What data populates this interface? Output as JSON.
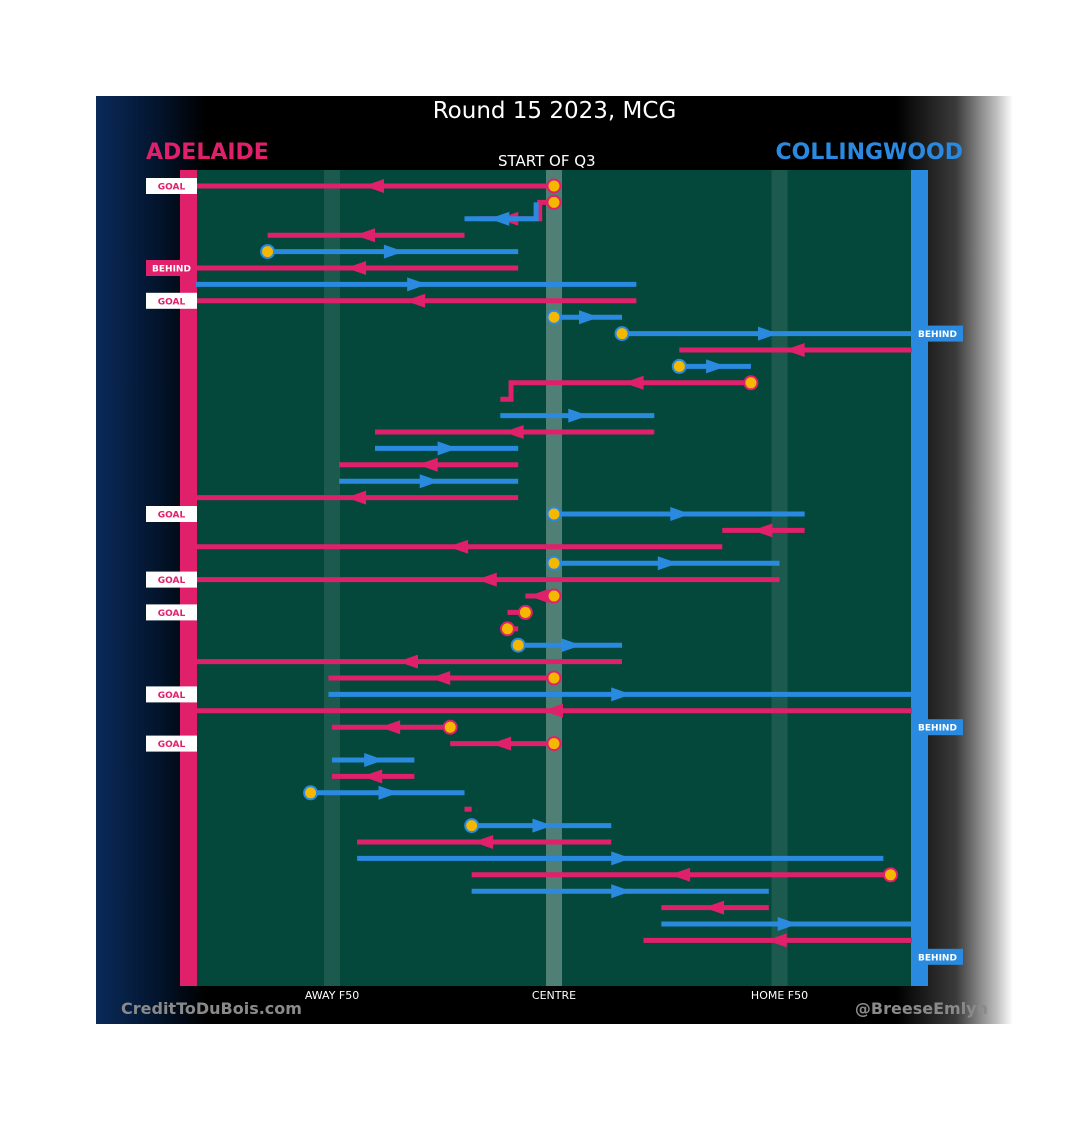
{
  "title": "Round 15 2023, MCG",
  "team_left": "ADELAIDE",
  "team_right": "COLLINGWOOD",
  "period_label": "START OF Q3",
  "credit_left": "CreditToDuBois.com",
  "credit_right": "@BreeseEmlyn",
  "colors": {
    "adelaide": "#e0206a",
    "collingwood": "#2a8ae0",
    "field": "#03483a",
    "stoppage_marker": "#f5b800"
  },
  "chart_data": {
    "type": "line",
    "title": "Round 15 2023, MCG",
    "xlabel": "",
    "ylabel": "",
    "x_ticks": [
      "AWAY F50",
      "CENTRE",
      "HOME F50"
    ],
    "series": [
      {
        "name": "ADELAIDE"
      },
      {
        "name": "COLLINGWOOD"
      }
    ],
    "outcome_labels": [
      "GOAL",
      "BEHIND"
    ],
    "outcomes_left": [
      {
        "row": 0,
        "label": "GOAL"
      },
      {
        "row": 5,
        "label": "BEHIND"
      },
      {
        "row": 7,
        "label": "GOAL"
      },
      {
        "row": 20,
        "label": "GOAL"
      },
      {
        "row": 24,
        "label": "GOAL"
      },
      {
        "row": 26,
        "label": "GOAL"
      },
      {
        "row": 31,
        "label": "GOAL"
      },
      {
        "row": 34,
        "label": "GOAL"
      }
    ],
    "outcomes_right": [
      {
        "row": 9,
        "label": "BEHIND"
      },
      {
        "row": 33,
        "label": "BEHIND"
      },
      {
        "row": 47,
        "label": "BEHIND"
      }
    ],
    "chains": [
      {
        "team": "adelaide",
        "start_marker": true,
        "points": [
          [
            0,
            0,
            0
          ],
          [
            0,
            0,
            -100
          ]
        ]
      },
      {
        "team": "adelaide",
        "start_marker": true,
        "points": [
          [
            1,
            0,
            -4
          ],
          [
            2,
            -4,
            -21
          ]
        ]
      },
      {
        "team": "collingwood",
        "points": [
          [
            1,
            -5,
            -5
          ],
          [
            2,
            -5,
            -25
          ]
        ]
      },
      {
        "team": "adelaide",
        "points": [
          [
            3,
            -25,
            -80
          ]
        ]
      },
      {
        "team": "collingwood",
        "start_marker": true,
        "points": [
          [
            4,
            -80,
            -10
          ]
        ]
      },
      {
        "team": "adelaide",
        "points": [
          [
            5,
            -10,
            -100
          ]
        ]
      },
      {
        "team": "collingwood",
        "points": [
          [
            6,
            -100,
            23
          ]
        ]
      },
      {
        "team": "adelaide",
        "points": [
          [
            7,
            23,
            -100
          ]
        ]
      },
      {
        "team": "collingwood",
        "start_marker": true,
        "points": [
          [
            8,
            0,
            19
          ]
        ]
      },
      {
        "team": "collingwood",
        "start_marker": true,
        "points": [
          [
            9,
            19,
            100
          ]
        ]
      },
      {
        "team": "adelaide",
        "points": [
          [
            10,
            100,
            35
          ]
        ]
      },
      {
        "team": "collingwood",
        "start_marker": true,
        "points": [
          [
            11,
            35,
            55
          ]
        ]
      },
      {
        "team": "adelaide",
        "start_marker": true,
        "points": [
          [
            12,
            55,
            -10
          ]
        ]
      },
      {
        "team": "adelaide",
        "points": [
          [
            12,
            -10,
            -12
          ],
          [
            13,
            -12,
            -15
          ]
        ]
      },
      {
        "team": "collingwood",
        "points": [
          [
            14,
            -15,
            28
          ]
        ]
      },
      {
        "team": "adelaide",
        "points": [
          [
            15,
            28,
            -50
          ]
        ]
      },
      {
        "team": "collingwood",
        "points": [
          [
            16,
            -50,
            -10
          ]
        ]
      },
      {
        "team": "adelaide",
        "points": [
          [
            17,
            -10,
            -60
          ]
        ]
      },
      {
        "team": "collingwood",
        "points": [
          [
            18,
            -60,
            -10
          ]
        ]
      },
      {
        "team": "adelaide",
        "points": [
          [
            19,
            -10,
            -100
          ]
        ]
      },
      {
        "team": "collingwood",
        "start_marker": true,
        "points": [
          [
            20,
            0,
            70
          ]
        ]
      },
      {
        "team": "adelaide",
        "points": [
          [
            21,
            70,
            47
          ]
        ]
      },
      {
        "team": "adelaide",
        "points": [
          [
            22,
            47,
            -100
          ]
        ]
      },
      {
        "team": "collingwood",
        "start_marker": true,
        "points": [
          [
            23,
            0,
            63
          ]
        ]
      },
      {
        "team": "adelaide",
        "points": [
          [
            24,
            63,
            -100
          ]
        ]
      },
      {
        "team": "adelaide",
        "start_marker": true,
        "points": [
          [
            25,
            0,
            -8
          ]
        ]
      },
      {
        "team": "adelaide",
        "start_marker": true,
        "points": [
          [
            26,
            -8,
            -13
          ]
        ]
      },
      {
        "team": "adelaide",
        "start_marker": true,
        "points": [
          [
            27,
            -13,
            -10
          ]
        ]
      },
      {
        "team": "collingwood",
        "start_marker": true,
        "points": [
          [
            28,
            -10,
            19
          ]
        ]
      },
      {
        "team": "adelaide",
        "points": [
          [
            29,
            19,
            -100
          ]
        ]
      },
      {
        "team": "adelaide",
        "start_marker": true,
        "points": [
          [
            30,
            0,
            -63
          ]
        ]
      },
      {
        "team": "collingwood",
        "points": [
          [
            31,
            -63,
            100
          ]
        ]
      },
      {
        "team": "adelaide",
        "points": [
          [
            32,
            100,
            -100
          ]
        ]
      },
      {
        "team": "adelaide",
        "start_marker": true,
        "points": [
          [
            33,
            -29,
            -62
          ]
        ]
      },
      {
        "team": "adelaide",
        "start_marker": true,
        "points": [
          [
            34,
            0,
            -29
          ]
        ]
      },
      {
        "team": "collingwood",
        "points": [
          [
            35,
            -62,
            -39
          ]
        ]
      },
      {
        "team": "adelaide",
        "points": [
          [
            36,
            -39,
            -62
          ]
        ]
      },
      {
        "team": "collingwood",
        "start_marker": true,
        "points": [
          [
            37,
            -68,
            -25
          ]
        ]
      },
      {
        "team": "adelaide",
        "points": [
          [
            38,
            -25,
            -23
          ]
        ]
      },
      {
        "team": "collingwood",
        "start_marker": true,
        "points": [
          [
            39,
            -23,
            16
          ]
        ]
      },
      {
        "team": "adelaide",
        "points": [
          [
            40,
            16,
            -55
          ]
        ]
      },
      {
        "team": "collingwood",
        "points": [
          [
            41,
            -55,
            92
          ]
        ]
      },
      {
        "team": "adelaide",
        "start_marker": true,
        "points": [
          [
            42,
            94,
            -23
          ]
        ]
      },
      {
        "team": "collingwood",
        "points": [
          [
            43,
            -23,
            60
          ]
        ]
      },
      {
        "team": "adelaide",
        "points": [
          [
            44,
            60,
            30
          ]
        ]
      },
      {
        "team": "collingwood",
        "points": [
          [
            45,
            30,
            100
          ]
        ]
      },
      {
        "team": "adelaide",
        "points": [
          [
            46,
            100,
            25
          ]
        ]
      }
    ]
  }
}
